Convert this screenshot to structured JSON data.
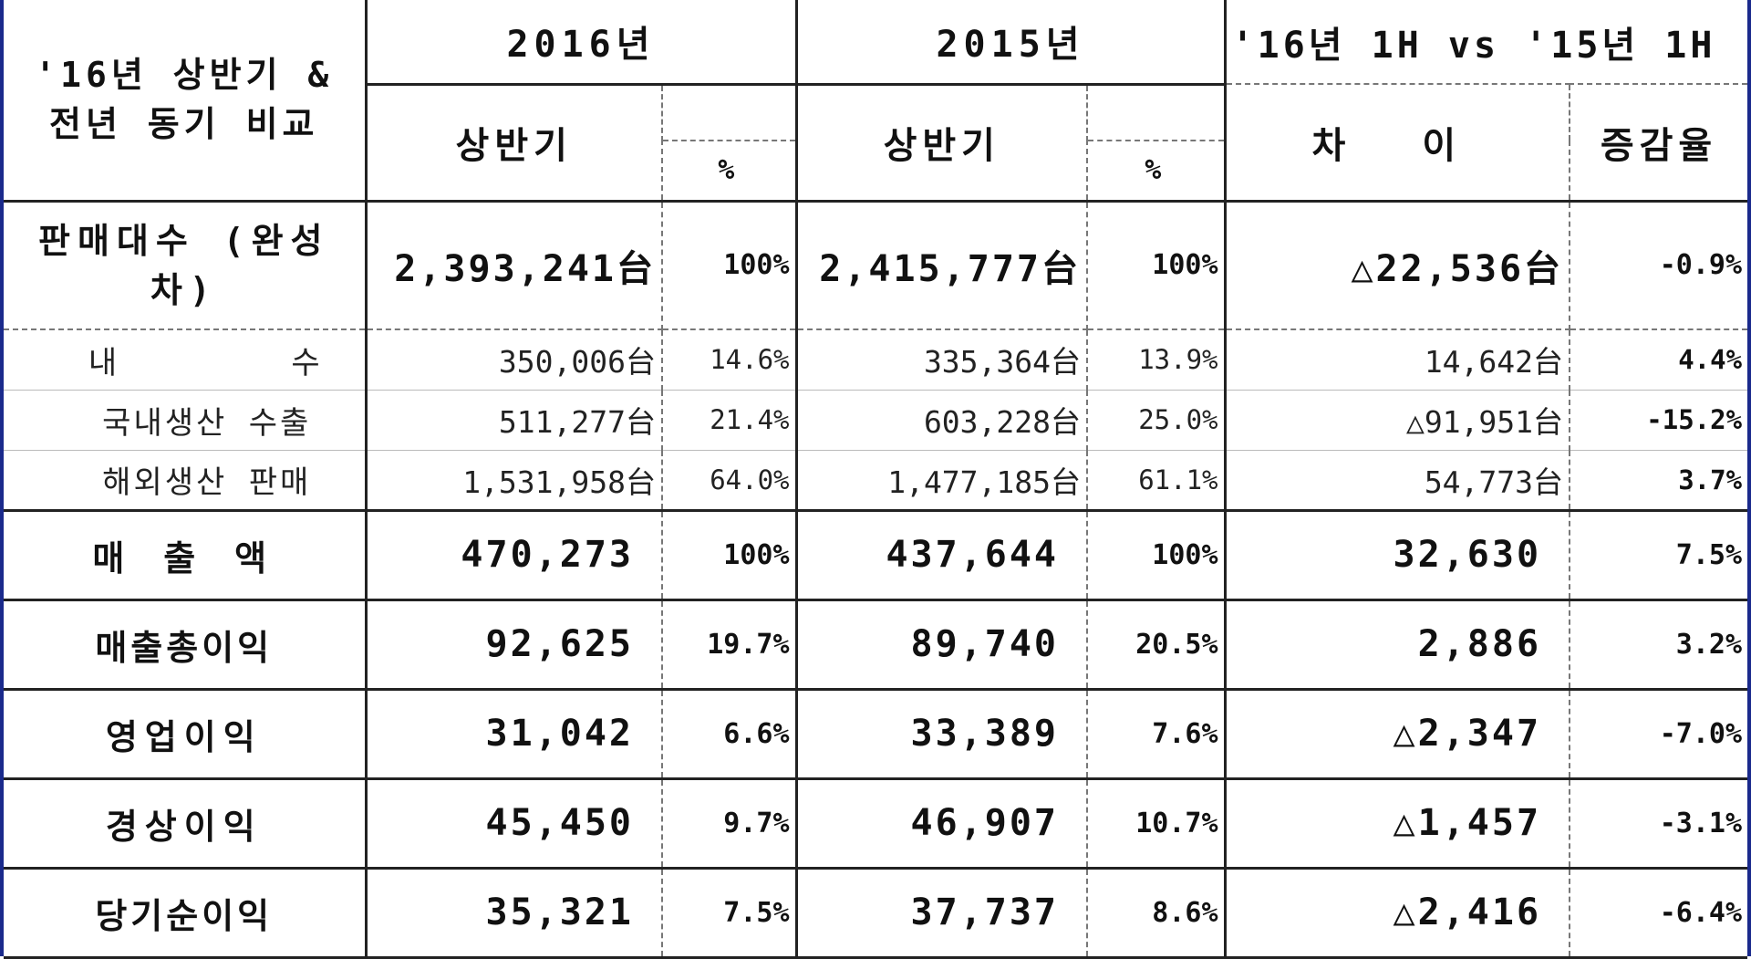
{
  "header": {
    "corner": "'16년 상반기 & 전년 동기 비교",
    "year2016": "2016년",
    "year2015": "2015년",
    "compare": "'16년 1H vs '15년 1H",
    "half": "상반기",
    "pct": "%",
    "diff": "차 이",
    "rate": "증감율"
  },
  "rows": [
    {
      "label": "판매대수 (완성차)",
      "v2016": "2,393,241台",
      "p2016": "100%",
      "v2015": "2,415,777台",
      "p2015": "100%",
      "diff": "△22,536台",
      "rate": "-0.9%"
    },
    {
      "label": "내       수",
      "v2016": "350,006台",
      "p2016": "14.6%",
      "v2015": "335,364台",
      "p2015": "13.9%",
      "diff": "14,642台",
      "rate": "4.4%"
    },
    {
      "label": "국내생산 수출",
      "v2016": "511,277台",
      "p2016": "21.4%",
      "v2015": "603,228台",
      "p2015": "25.0%",
      "diff": "△91,951台",
      "rate": "-15.2%"
    },
    {
      "label": "해외생산 판매",
      "v2016": "1,531,958台",
      "p2016": "64.0%",
      "v2015": "1,477,185台",
      "p2015": "61.1%",
      "diff": "54,773台",
      "rate": "3.7%"
    },
    {
      "label": "매 출 액",
      "v2016": "470,273",
      "p2016": "100%",
      "v2015": "437,644",
      "p2015": "100%",
      "diff": "32,630",
      "rate": "7.5%"
    },
    {
      "label": "매출총이익",
      "v2016": "92,625",
      "p2016": "19.7%",
      "v2015": "89,740",
      "p2015": "20.5%",
      "diff": "2,886",
      "rate": "3.2%"
    },
    {
      "label": "영업이익",
      "v2016": "31,042",
      "p2016": "6.6%",
      "v2015": "33,389",
      "p2015": "7.6%",
      "diff": "△2,347",
      "rate": "-7.0%"
    },
    {
      "label": "경상이익",
      "v2016": "45,450",
      "p2016": "9.7%",
      "v2015": "46,907",
      "p2015": "10.7%",
      "diff": "△1,457",
      "rate": "-3.1%"
    },
    {
      "label": "당기순이익",
      "v2016": "35,321",
      "p2016": "7.5%",
      "v2015": "37,737",
      "p2015": "8.6%",
      "diff": "△2,416",
      "rate": "-6.4%"
    }
  ]
}
